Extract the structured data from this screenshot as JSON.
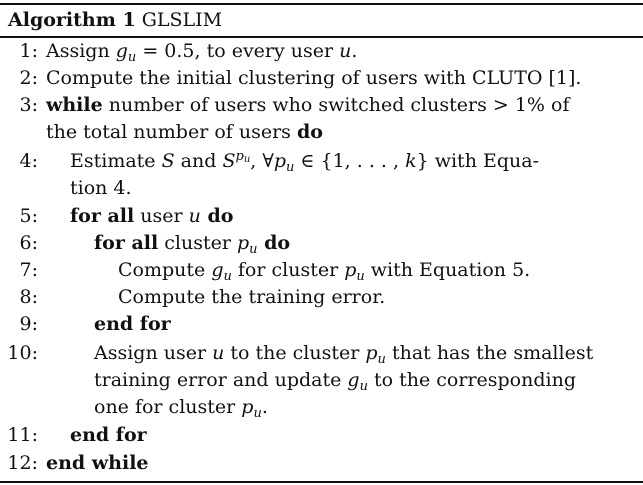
{
  "algorithm": {
    "label": "Algorithm 1",
    "name": "GLSLIM"
  },
  "steps": [
    {
      "num": "1:",
      "a": "Assign ",
      "b": "g",
      "b_sub": "u",
      "c": " = 0.5, to every user ",
      "d": "u",
      "e": "."
    },
    {
      "num": "2:",
      "text": "Compute the initial clustering of users with CLUTO [1]."
    },
    {
      "num": "3:",
      "kw1": "while",
      "text": " number of users who switched clusters > 1% of"
    },
    {
      "num": "",
      "text": "the total number of users ",
      "kw2": "do"
    },
    {
      "num": "4:",
      "a": "Estimate ",
      "S1": "S",
      "and": " and ",
      "S2": "S",
      "sup": "p",
      "sup_sub": "u",
      "forall": ", ∀",
      "p": "p",
      "p_sub": "u",
      "set": " ∈ {1, . . . , ",
      "k": "k",
      "rest": "} with Equa-"
    },
    {
      "num": "",
      "text": "tion 4."
    },
    {
      "num": "5:",
      "kw1": "for all",
      "text": " user ",
      "var": "u",
      "kw2": " do"
    },
    {
      "num": "6:",
      "kw1": "for all",
      "text": " cluster ",
      "var": "p",
      "var_sub": "u",
      "kw2": " do"
    },
    {
      "num": "7:",
      "a": "Compute ",
      "g": "g",
      "g_sub": "u",
      "b": " for cluster ",
      "p": "p",
      "p_sub": "u",
      "c": " with Equation 5."
    },
    {
      "num": "8:",
      "text": "Compute the training error."
    },
    {
      "num": "9:",
      "kw1": "end for"
    },
    {
      "num": "10:",
      "a": "Assign user ",
      "u": "u",
      "b": " to the cluster ",
      "p": "p",
      "p_sub": "u",
      "c": " that has the smallest"
    },
    {
      "num": "",
      "a": "training error and update ",
      "g": "g",
      "g_sub": "u",
      "b": " to the corresponding"
    },
    {
      "num": "",
      "a": "one for cluster ",
      "p": "p",
      "p_sub": "u",
      "b": "."
    },
    {
      "num": "11:",
      "kw1": "end for"
    },
    {
      "num": "12:",
      "kw1": "end while"
    }
  ]
}
